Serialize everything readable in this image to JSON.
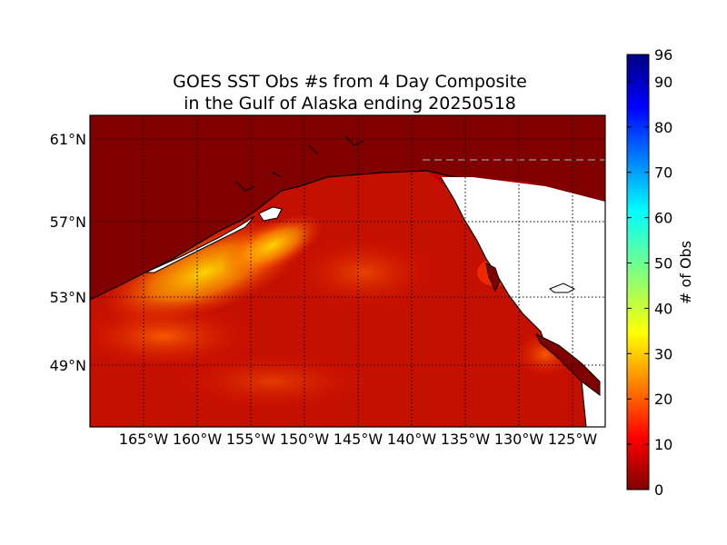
{
  "title": {
    "line1": "GOES SST Obs #s from 4 Day Composite",
    "line2": "in the Gulf of Alaska ending 20250518"
  },
  "map": {
    "lat_labels": [
      "61°N",
      "57°N",
      "53°N",
      "49°N"
    ],
    "lon_labels": [
      "165°W",
      "160°W",
      "155°W",
      "150°W",
      "145°W",
      "140°W",
      "135°W",
      "130°W",
      "125°W"
    ],
    "land_color": "#800000",
    "no_data_color": "#ffffff",
    "gridlines": "dotted"
  },
  "colorbar": {
    "label": "# of Obs",
    "ticks": [
      "0",
      "10",
      "20",
      "30",
      "40",
      "50",
      "60",
      "70",
      "80",
      "90",
      "96"
    ],
    "min": 0,
    "max": 96,
    "colormap": "jet"
  }
}
